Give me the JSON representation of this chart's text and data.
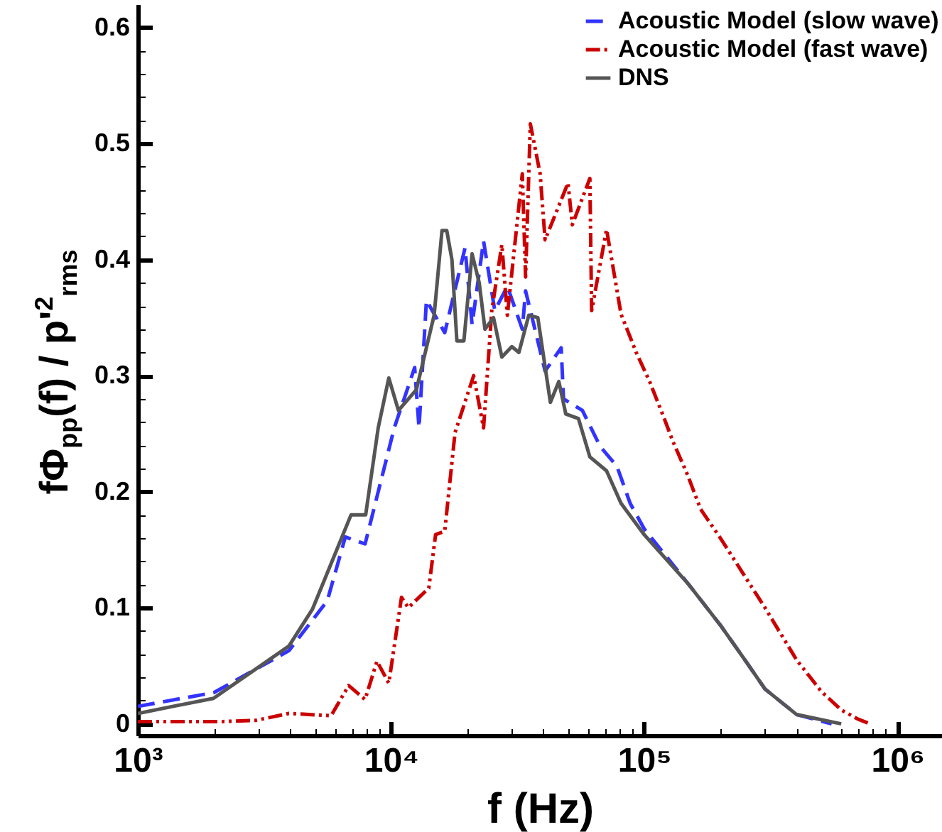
{
  "chart_data": {
    "type": "line",
    "xlabel": "f (Hz)",
    "ylabel": "fΦ$_{pp}$(f) / p'$^{2}$$_{rms}$",
    "log": "x",
    "legend": "top right",
    "grid": false,
    "xlim": [
      1000,
      1500000
    ],
    "ylim": [
      -0.01,
      0.62
    ],
    "xticks": [
      {
        "value": 1000,
        "label": "10³"
      },
      {
        "value": 2000,
        "label": null
      },
      {
        "value": 3000,
        "label": null
      },
      {
        "value": 4000,
        "label": null
      },
      {
        "value": 5000,
        "label": null
      },
      {
        "value": 6000,
        "label": null
      },
      {
        "value": 7000,
        "label": null
      },
      {
        "value": 8000,
        "label": null
      },
      {
        "value": 9000,
        "label": null
      },
      {
        "value": 10000,
        "label": "10⁴"
      },
      {
        "value": 20000,
        "label": null
      },
      {
        "value": 30000,
        "label": null
      },
      {
        "value": 40000,
        "label": null
      },
      {
        "value": 50000,
        "label": null
      },
      {
        "value": 60000,
        "label": null
      },
      {
        "value": 70000,
        "label": null
      },
      {
        "value": 80000,
        "label": null
      },
      {
        "value": 90000,
        "label": null
      },
      {
        "value": 100000,
        "label": "10⁵"
      },
      {
        "value": 200000,
        "label": null
      },
      {
        "value": 300000,
        "label": null
      },
      {
        "value": 400000,
        "label": null
      },
      {
        "value": 500000,
        "label": null
      },
      {
        "value": 600000,
        "label": null
      },
      {
        "value": 700000,
        "label": null
      },
      {
        "value": 800000,
        "label": null
      },
      {
        "value": 900000,
        "label": null
      },
      {
        "value": 1000000,
        "label": "10⁶"
      }
    ],
    "yticks": [
      0,
      {
        "value": 0.02,
        "label": null
      },
      {
        "value": 0.04,
        "label": null
      },
      {
        "value": 0.06,
        "label": null
      },
      {
        "value": 0.08,
        "label": null
      },
      0.1,
      {
        "value": 0.12,
        "label": null
      },
      {
        "value": 0.14,
        "label": null
      },
      {
        "value": 0.16,
        "label": null
      },
      {
        "value": 0.18,
        "label": null
      },
      0.2,
      {
        "value": 0.22,
        "label": null
      },
      {
        "value": 0.24,
        "label": null
      },
      {
        "value": 0.26,
        "label": null
      },
      {
        "value": 0.28,
        "label": null
      },
      0.3,
      {
        "value": 0.32,
        "label": null
      },
      {
        "value": 0.34,
        "label": null
      },
      {
        "value": 0.36,
        "label": null
      },
      {
        "value": 0.38,
        "label": null
      },
      0.4,
      {
        "value": 0.42,
        "label": null
      },
      {
        "value": 0.44,
        "label": null
      },
      {
        "value": 0.46,
        "label": null
      },
      {
        "value": 0.48,
        "label": null
      },
      0.5,
      {
        "value": 0.52,
        "label": null
      },
      {
        "value": 0.54,
        "label": null
      },
      {
        "value": 0.56,
        "label": null
      },
      {
        "value": 0.58,
        "label": null
      },
      0.6
    ],
    "series": [
      {
        "name": "Acoustic Model (slow wave)",
        "color": "#3333ff",
        "line_style": "dashed",
        "x": [
          1000,
          2000,
          3950,
          5600,
          6600,
          7900,
          10300,
          12400,
          12900,
          13800,
          16300,
          19600,
          20900,
          23200,
          25700,
          28800,
          33000,
          34000,
          40600,
          47000,
          48000,
          57000,
          67000,
          78000,
          88000,
          100000,
          150000,
          200000,
          250000,
          300000,
          400000,
          550000
        ],
        "values": [
          0.015,
          0.027,
          0.063,
          0.106,
          0.161,
          0.155,
          0.255,
          0.307,
          0.255,
          0.365,
          0.337,
          0.41,
          0.344,
          0.416,
          0.356,
          0.377,
          0.34,
          0.373,
          0.304,
          0.324,
          0.28,
          0.27,
          0.239,
          0.222,
          0.19,
          0.168,
          0.12,
          0.085,
          0.055,
          0.03,
          0.008,
          0
        ]
      },
      {
        "name": "Acoustic Model (fast wave)",
        "color": "#cc0000",
        "line_style": "dashdotdot",
        "x": [
          1000,
          2170,
          2930,
          3950,
          5800,
          6800,
          7900,
          8800,
          9800,
          11000,
          11700,
          14100,
          15000,
          16300,
          17900,
          21200,
          23200,
          25000,
          27400,
          28800,
          33000,
          34000,
          35500,
          38800,
          40600,
          50000,
          52000,
          61000,
          62000,
          71000,
          81000,
          93000,
          105000,
          120000,
          130000,
          148000,
          167000,
          200000,
          300000,
          400000,
          500000,
          600000,
          700000,
          780000
        ],
        "values": [
          0.002,
          0.002,
          0.003,
          0.009,
          0.007,
          0.033,
          0.021,
          0.054,
          0.035,
          0.109,
          0.1,
          0.117,
          0.163,
          0.166,
          0.251,
          0.3,
          0.255,
          0.356,
          0.413,
          0.352,
          0.474,
          0.385,
          0.517,
          0.474,
          0.417,
          0.466,
          0.43,
          0.47,
          0.356,
          0.426,
          0.353,
          0.32,
          0.295,
          0.263,
          0.243,
          0.215,
          0.185,
          0.16,
          0.1,
          0.055,
          0.028,
          0.012,
          0.004,
          0
        ]
      },
      {
        "name": "DNS",
        "color": "#555555",
        "line_style": "solid",
        "x": [
          1000,
          1990,
          3950,
          4900,
          6950,
          7940,
          8900,
          9800,
          10700,
          12600,
          14800,
          15900,
          16600,
          17400,
          18200,
          19400,
          20900,
          22300,
          23500,
          25400,
          27400,
          30000,
          32000,
          35000,
          38000,
          42600,
          46000,
          49000,
          55000,
          61000,
          71000,
          81000,
          100000,
          150000,
          200000,
          250000,
          300000,
          400000,
          600000
        ],
        "values": [
          0.009,
          0.022,
          0.067,
          0.099,
          0.18,
          0.18,
          0.255,
          0.298,
          0.27,
          0.288,
          0.352,
          0.425,
          0.425,
          0.4,
          0.33,
          0.33,
          0.405,
          0.38,
          0.34,
          0.35,
          0.316,
          0.325,
          0.32,
          0.352,
          0.35,
          0.277,
          0.295,
          0.267,
          0.263,
          0.23,
          0.218,
          0.19,
          0.163,
          0.12,
          0.085,
          0.055,
          0.03,
          0.008,
          0
        ]
      }
    ]
  }
}
